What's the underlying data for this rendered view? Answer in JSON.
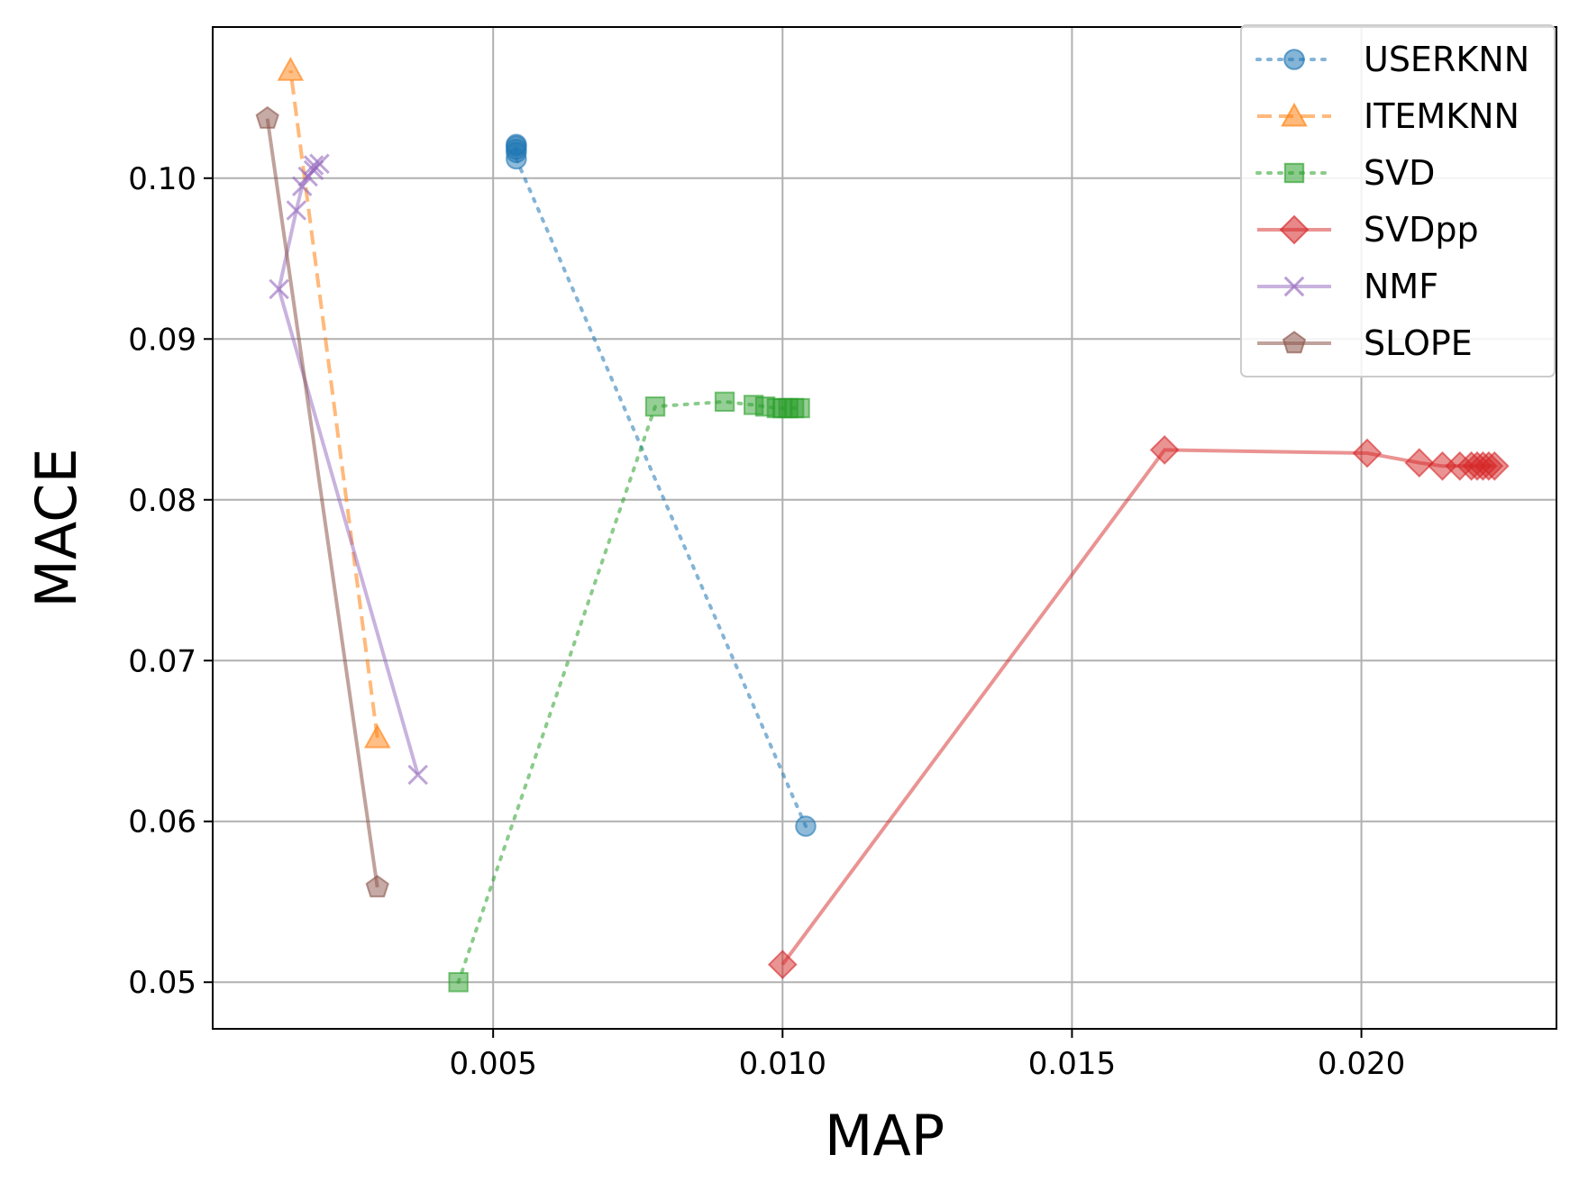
{
  "chart_data": {
    "type": "line",
    "title": "",
    "xlabel": "MAP",
    "ylabel": "MACE",
    "xlim": [
      0.000155,
      0.02337
    ],
    "ylim": [
      0.0471,
      0.1094
    ],
    "xticks": [
      {
        "value": 0.005,
        "label": "0.005"
      },
      {
        "value": 0.01,
        "label": "0.010"
      },
      {
        "value": 0.015,
        "label": "0.015"
      },
      {
        "value": 0.02,
        "label": "0.020"
      }
    ],
    "yticks": [
      {
        "value": 0.05,
        "label": "0.05"
      },
      {
        "value": 0.06,
        "label": "0.06"
      },
      {
        "value": 0.07,
        "label": "0.07"
      },
      {
        "value": 0.08,
        "label": "0.08"
      },
      {
        "value": 0.09,
        "label": "0.09"
      },
      {
        "value": 0.1,
        "label": "0.10"
      }
    ],
    "grid": true,
    "legend_position": "top-right",
    "series": [
      {
        "name": "USERKNN",
        "color": "#1f77b4",
        "marker": "circle",
        "line_style": "dotted",
        "line_alpha": 0.55,
        "points": [
          [
            0.0104,
            0.0597
          ],
          [
            0.0054,
            0.1012
          ],
          [
            0.0054,
            0.1016
          ],
          [
            0.0054,
            0.1018
          ],
          [
            0.0054,
            0.102
          ],
          [
            0.0054,
            0.1021
          ]
        ]
      },
      {
        "name": "ITEMKNN",
        "color": "#ff7f0e",
        "marker": "triangle",
        "line_style": "dashed",
        "line_alpha": 0.55,
        "points": [
          [
            0.003,
            0.0652
          ],
          [
            0.0015,
            0.1067
          ]
        ]
      },
      {
        "name": "SVD",
        "color": "#2ca02c",
        "marker": "square",
        "line_style": "dotted",
        "line_alpha": 0.55,
        "points": [
          [
            0.0044,
            0.05
          ],
          [
            0.0078,
            0.0858
          ],
          [
            0.009,
            0.0861
          ],
          [
            0.0095,
            0.0859
          ],
          [
            0.0097,
            0.0858
          ],
          [
            0.0099,
            0.0857
          ],
          [
            0.01,
            0.0857
          ],
          [
            0.0101,
            0.0857
          ],
          [
            0.0102,
            0.0857
          ],
          [
            0.0103,
            0.0857
          ]
        ]
      },
      {
        "name": "SVDpp",
        "color": "#d62728",
        "marker": "diamond",
        "line_style": "solid",
        "line_alpha": 0.5,
        "points": [
          [
            0.01,
            0.0511
          ],
          [
            0.0166,
            0.0831
          ],
          [
            0.0201,
            0.0829
          ],
          [
            0.021,
            0.0823
          ],
          [
            0.0214,
            0.0821
          ],
          [
            0.0217,
            0.0821
          ],
          [
            0.0219,
            0.0821
          ],
          [
            0.022,
            0.0821
          ],
          [
            0.0221,
            0.0821
          ],
          [
            0.0222,
            0.0821
          ],
          [
            0.0223,
            0.0821
          ]
        ]
      },
      {
        "name": "NMF",
        "color": "#9467bd",
        "marker": "x",
        "line_style": "solid",
        "line_alpha": 0.5,
        "points": [
          [
            0.0037,
            0.0629
          ],
          [
            0.0013,
            0.0931
          ],
          [
            0.0016,
            0.098
          ],
          [
            0.0017,
            0.0995
          ],
          [
            0.0018,
            0.1001
          ],
          [
            0.0019,
            0.1005
          ],
          [
            0.0019,
            0.1008
          ],
          [
            0.002,
            0.1009
          ]
        ]
      },
      {
        "name": "SLOPE",
        "color": "#8c564b",
        "marker": "pentagon",
        "line_style": "solid",
        "line_alpha": 0.55,
        "points": [
          [
            0.003,
            0.0559
          ],
          [
            0.0011,
            0.1037
          ]
        ]
      }
    ]
  }
}
